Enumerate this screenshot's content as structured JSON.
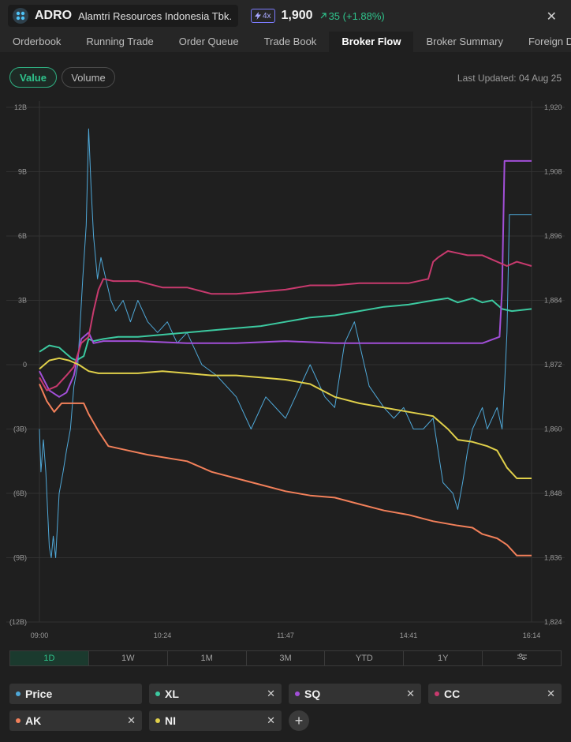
{
  "header": {
    "ticker": "ADRO",
    "company": "Alamtri Resources Indonesia Tbk.",
    "leverage_badge": "4x",
    "price": "1,900",
    "change": "35 (+1.88%)",
    "change_color": "#2fc38c"
  },
  "tabs": [
    "Orderbook",
    "Running Trade",
    "Order Queue",
    "Trade Book",
    "Broker Flow",
    "Broker Summary",
    "Foreign Domestic"
  ],
  "active_tab": "Broker Flow",
  "toggle": {
    "value_label": "Value",
    "volume_label": "Volume"
  },
  "last_updated": "Last Updated: 04 Aug 25",
  "ranges": [
    "1D",
    "1W",
    "1M",
    "3M",
    "YTD",
    "1Y"
  ],
  "active_range": "1D",
  "settings_icon": "sliders-icon",
  "chips": [
    {
      "label": "Price",
      "color": "#4fa8d8",
      "removable": false
    },
    {
      "label": "XL",
      "color": "#3cc9a0",
      "removable": true
    },
    {
      "label": "SQ",
      "color": "#a24fd8",
      "removable": true
    },
    {
      "label": "CC",
      "color": "#c83a6e",
      "removable": true
    },
    {
      "label": "AK",
      "color": "#f2805a",
      "removable": true
    },
    {
      "label": "NI",
      "color": "#e0d04a",
      "removable": true
    }
  ],
  "chart_data": {
    "type": "line",
    "x_ticks": [
      "09:00",
      "10:24",
      "11:47",
      "14:41",
      "16:14"
    ],
    "y_left_ticks": [
      "12B",
      "9B",
      "6B",
      "3B",
      "0",
      "(3B)",
      "(6B)",
      "(9B)",
      "(12B)"
    ],
    "y_left_range": [
      -12,
      12
    ],
    "y_left_unit": "B",
    "y_right_ticks": [
      "1,920",
      "1,908",
      "1,896",
      "1,884",
      "1,872",
      "1,860",
      "1,848",
      "1,836",
      "1,824"
    ],
    "y_right_range": [
      1824,
      1920
    ],
    "x_range": [
      0,
      1
    ],
    "grid": true,
    "series": [
      {
        "name": "Price",
        "axis": "right",
        "color": "#4fa8d8",
        "x": [
          0,
          0.003,
          0.008,
          0.013,
          0.02,
          0.024,
          0.028,
          0.033,
          0.04,
          0.048,
          0.055,
          0.063,
          0.07,
          0.078,
          0.083,
          0.088,
          0.095,
          0.1,
          0.105,
          0.11,
          0.118,
          0.125,
          0.135,
          0.145,
          0.155,
          0.17,
          0.185,
          0.2,
          0.22,
          0.24,
          0.26,
          0.28,
          0.3,
          0.33,
          0.36,
          0.4,
          0.43,
          0.46,
          0.5,
          0.52,
          0.55,
          0.58,
          0.6,
          0.62,
          0.64,
          0.67,
          0.7,
          0.72,
          0.74,
          0.76,
          0.78,
          0.8,
          0.81,
          0.82,
          0.84,
          0.85,
          0.86,
          0.87,
          0.88,
          0.9,
          0.91,
          0.93,
          0.94,
          0.945,
          0.95,
          0.955,
          0.97,
          1
        ],
        "y": [
          1860,
          1852,
          1858,
          1852,
          1838,
          1836,
          1840,
          1836,
          1848,
          1852,
          1856,
          1860,
          1868,
          1872,
          1880,
          1888,
          1898,
          1916,
          1905,
          1896,
          1888,
          1892,
          1888,
          1884,
          1882,
          1884,
          1880,
          1884,
          1880,
          1878,
          1880,
          1876,
          1878,
          1872,
          1870,
          1866,
          1860,
          1866,
          1862,
          1866,
          1872,
          1866,
          1864,
          1876,
          1880,
          1868,
          1864,
          1862,
          1864,
          1860,
          1860,
          1862,
          1856,
          1850,
          1848,
          1845,
          1850,
          1856,
          1860,
          1864,
          1860,
          1864,
          1860,
          1868,
          1878,
          1900,
          1900,
          1900
        ]
      },
      {
        "name": "XL",
        "axis": "left",
        "color": "#3cc9a0",
        "x": [
          0,
          0.02,
          0.04,
          0.055,
          0.065,
          0.075,
          0.09,
          0.1,
          0.11,
          0.13,
          0.16,
          0.2,
          0.25,
          0.3,
          0.35,
          0.4,
          0.45,
          0.5,
          0.55,
          0.6,
          0.65,
          0.7,
          0.75,
          0.8,
          0.83,
          0.85,
          0.88,
          0.9,
          0.92,
          0.94,
          0.96,
          1
        ],
        "y": [
          0.6,
          0.9,
          0.8,
          0.5,
          0.3,
          0.2,
          0.4,
          1.2,
          1.1,
          1.2,
          1.3,
          1.3,
          1.4,
          1.5,
          1.6,
          1.7,
          1.8,
          2.0,
          2.2,
          2.3,
          2.5,
          2.7,
          2.8,
          3.0,
          3.1,
          2.9,
          3.1,
          2.9,
          3.0,
          2.6,
          2.5,
          2.6
        ]
      },
      {
        "name": "SQ",
        "axis": "left",
        "color": "#a24fd8",
        "x": [
          0,
          0.02,
          0.04,
          0.055,
          0.07,
          0.085,
          0.1,
          0.11,
          0.13,
          0.2,
          0.3,
          0.4,
          0.5,
          0.6,
          0.7,
          0.8,
          0.85,
          0.9,
          0.935,
          0.94,
          0.945,
          1
        ],
        "y": [
          -0.3,
          -1.2,
          -1.5,
          -1.3,
          -0.5,
          1.2,
          1.5,
          1.0,
          1.1,
          1.1,
          1.0,
          1.0,
          1.1,
          1.0,
          1.0,
          1.0,
          1.0,
          1.0,
          1.3,
          3.5,
          9.5,
          9.5
        ]
      },
      {
        "name": "CC",
        "axis": "left",
        "color": "#c83a6e",
        "x": [
          0,
          0.015,
          0.035,
          0.055,
          0.07,
          0.085,
          0.1,
          0.11,
          0.12,
          0.13,
          0.15,
          0.2,
          0.25,
          0.3,
          0.35,
          0.4,
          0.45,
          0.5,
          0.55,
          0.6,
          0.65,
          0.7,
          0.75,
          0.79,
          0.8,
          0.81,
          0.83,
          0.85,
          0.87,
          0.9,
          0.93,
          0.95,
          0.97,
          1
        ],
        "y": [
          -0.6,
          -1.2,
          -1.0,
          -0.5,
          -0.1,
          1.0,
          1.3,
          2.5,
          3.5,
          4.0,
          3.9,
          3.9,
          3.6,
          3.6,
          3.3,
          3.3,
          3.4,
          3.5,
          3.7,
          3.7,
          3.8,
          3.8,
          3.8,
          4.0,
          4.8,
          5.0,
          5.3,
          5.2,
          5.1,
          5.1,
          4.8,
          4.6,
          4.8,
          4.6
        ]
      },
      {
        "name": "AK",
        "axis": "left",
        "color": "#f2805a",
        "x": [
          0,
          0.015,
          0.03,
          0.045,
          0.06,
          0.075,
          0.09,
          0.1,
          0.12,
          0.14,
          0.18,
          0.22,
          0.3,
          0.35,
          0.4,
          0.45,
          0.5,
          0.55,
          0.6,
          0.65,
          0.7,
          0.75,
          0.8,
          0.85,
          0.88,
          0.9,
          0.93,
          0.95,
          0.97,
          1
        ],
        "y": [
          -0.9,
          -1.7,
          -2.2,
          -1.8,
          -1.8,
          -1.8,
          -1.8,
          -2.3,
          -3.1,
          -3.8,
          -4.0,
          -4.2,
          -4.5,
          -5.0,
          -5.3,
          -5.6,
          -5.9,
          -6.1,
          -6.2,
          -6.5,
          -6.8,
          -7.0,
          -7.3,
          -7.5,
          -7.6,
          -7.9,
          -8.1,
          -8.4,
          -8.9,
          -8.9
        ]
      },
      {
        "name": "NI",
        "axis": "left",
        "color": "#e0d04a",
        "x": [
          0,
          0.02,
          0.04,
          0.06,
          0.08,
          0.1,
          0.12,
          0.15,
          0.2,
          0.25,
          0.3,
          0.35,
          0.4,
          0.45,
          0.5,
          0.55,
          0.6,
          0.65,
          0.7,
          0.75,
          0.8,
          0.83,
          0.85,
          0.88,
          0.91,
          0.93,
          0.95,
          0.97,
          1
        ],
        "y": [
          -0.2,
          0.2,
          0.3,
          0.2,
          0.0,
          -0.3,
          -0.4,
          -0.4,
          -0.4,
          -0.3,
          -0.4,
          -0.5,
          -0.5,
          -0.6,
          -0.7,
          -0.9,
          -1.5,
          -1.8,
          -2.0,
          -2.2,
          -2.4,
          -3.0,
          -3.5,
          -3.6,
          -3.8,
          -4.0,
          -4.8,
          -5.3,
          -5.3
        ]
      }
    ]
  }
}
